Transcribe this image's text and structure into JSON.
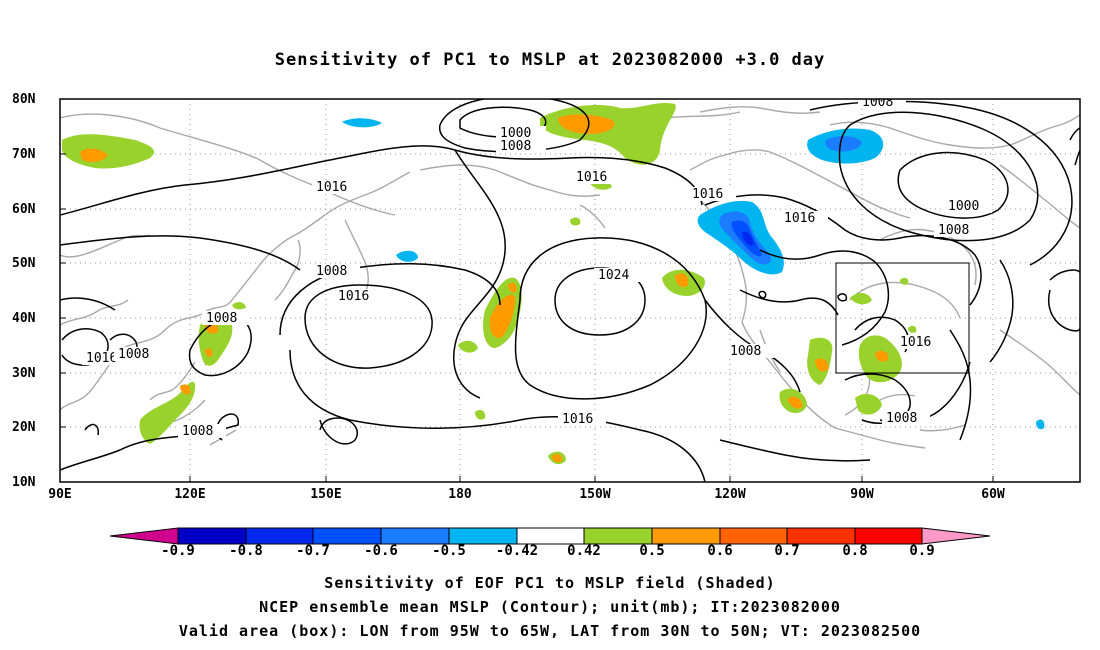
{
  "title": "Sensitivity of PC1 to MSLP at 2023082000 +3.0 day",
  "lat_labels": [
    "80N",
    "70N",
    "60N",
    "50N",
    "40N",
    "30N",
    "20N",
    "10N"
  ],
  "lon_labels": [
    "90E",
    "120E",
    "150E",
    "180",
    "150W",
    "120W",
    "90W",
    "60W"
  ],
  "contour_labels": [
    "1000",
    "1008",
    "1008",
    "1016",
    "1016",
    "1016",
    "1008",
    "1016",
    "1024",
    "1016",
    "1008",
    "1016",
    "1008",
    "1008",
    "1016",
    "1008",
    "1008",
    "1016",
    "1000"
  ],
  "colorbar": {
    "labels": [
      "-0.9",
      "-0.8",
      "-0.7",
      "-0.6",
      "-0.5",
      "-0.42",
      "0.42",
      "0.5",
      "0.6",
      "0.7",
      "0.8",
      "0.9"
    ],
    "colors": [
      "#d1008f",
      "#0000c8",
      "#0028f0",
      "#0050ff",
      "#1a7dff",
      "#00b4f0",
      "#ffffff",
      "#99d22c",
      "#ff9a00",
      "#ff6400",
      "#ff3200",
      "#ff0000",
      "#ff9ac8"
    ]
  },
  "footer": {
    "line1": "Sensitivity of EOF PC1 to MSLP field (Shaded)",
    "line2": "NCEP ensemble mean MSLP (Contour); unit(mb); IT:2023082000",
    "line3": "Valid area (box): LON from 95W to 65W, LAT from 30N to 50N; VT: 2023082500"
  }
}
